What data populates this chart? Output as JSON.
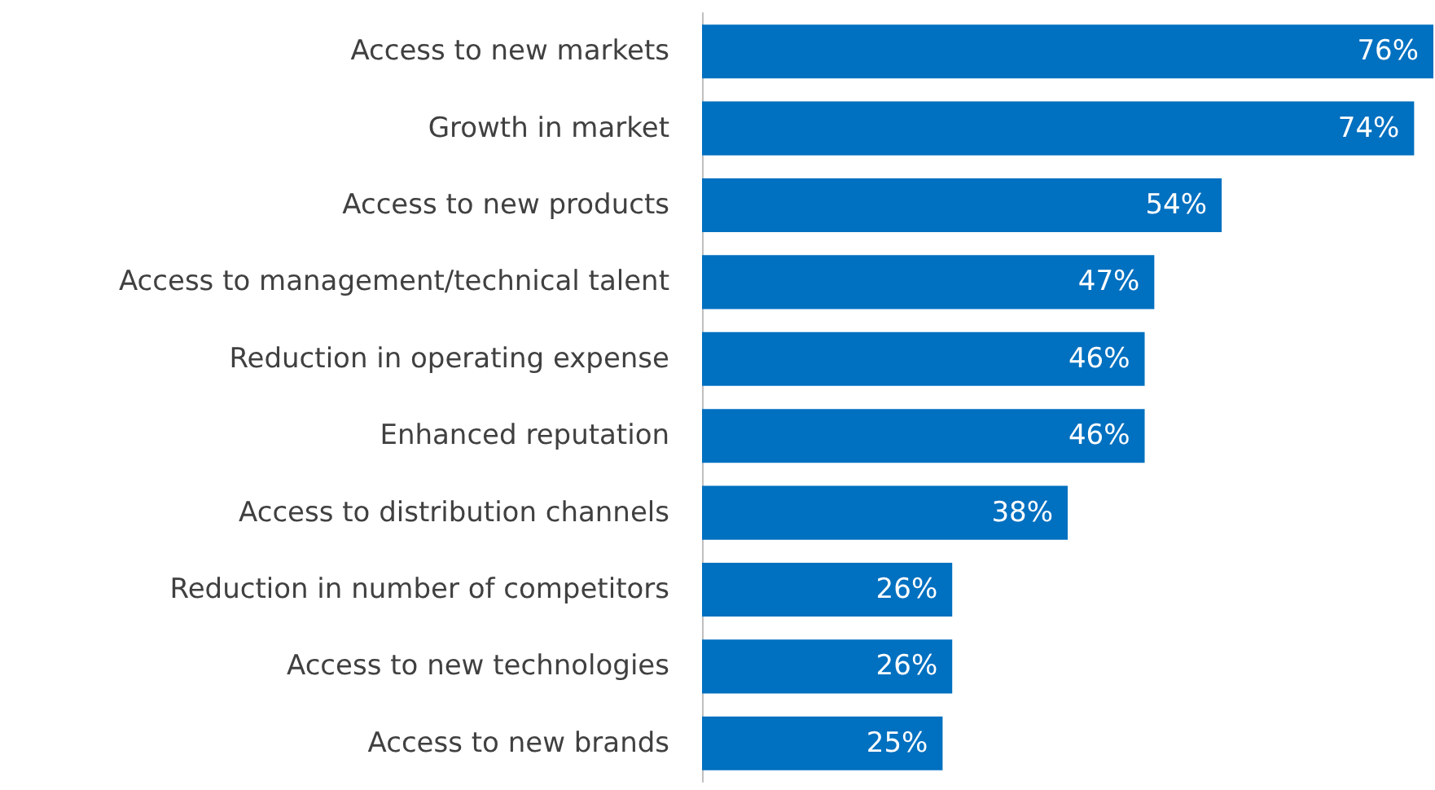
{
  "chart_data": {
    "type": "bar",
    "orientation": "horizontal",
    "color": "#0070c0",
    "categories": [
      "Access to new markets",
      "Growth in market",
      "Access to new products",
      "Access to management/technical talent",
      "Reduction in operating expense",
      "Enhanced reputation",
      "Access to distribution channels",
      "Reduction in number of competitors",
      "Access to new technologies",
      "Access to new brands"
    ],
    "values": [
      76,
      74,
      54,
      47,
      46,
      46,
      38,
      26,
      26,
      25
    ],
    "value_labels": [
      "76%",
      "74%",
      "54%",
      "47%",
      "46%",
      "46%",
      "38%",
      "26%",
      "26%",
      "25%"
    ]
  }
}
